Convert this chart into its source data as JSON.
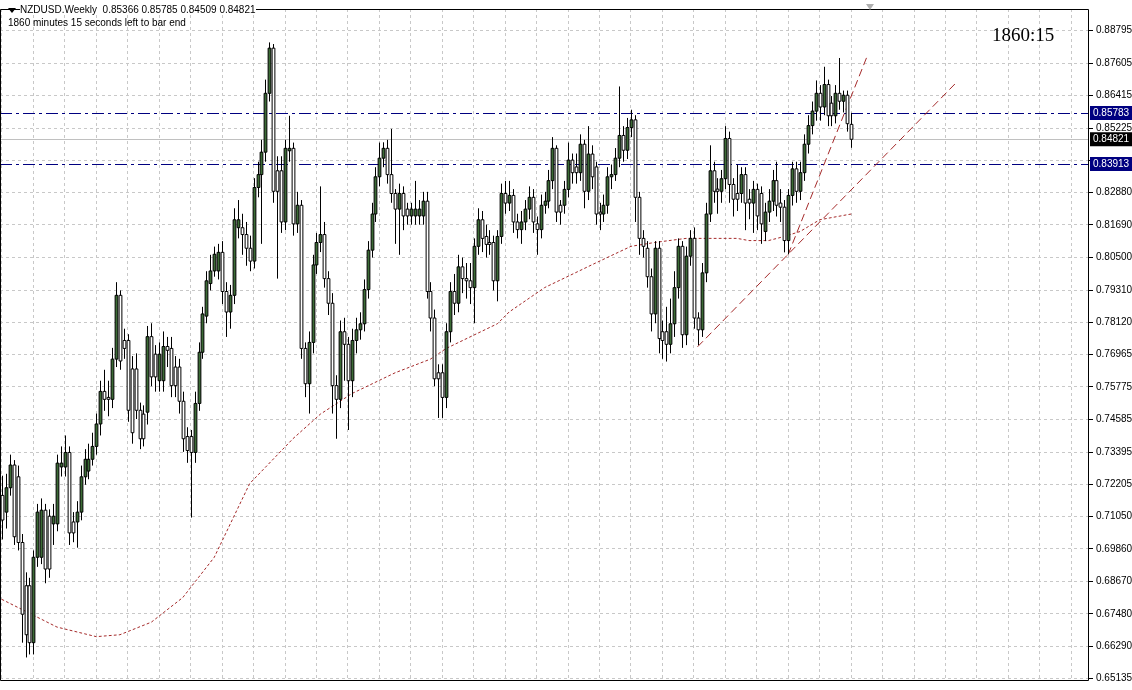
{
  "chart_data": {
    "type": "candlestick",
    "title": "NZDUSD.Weekly  0.85366 0.85785 0.84509 0.84821",
    "subtitle": "1860 minutes 15 seconds left to bar end",
    "annotations": [
      "1860:15"
    ],
    "categories": [
      null,
      null,
      null,
      null,
      null,
      null,
      null,
      null,
      null,
      null,
      null,
      null,
      null,
      null,
      null,
      null,
      null,
      null,
      null,
      null,
      null,
      null,
      null,
      null,
      null,
      null,
      null,
      null,
      null,
      null,
      null,
      null,
      null,
      null,
      null,
      null,
      null,
      null,
      null,
      null,
      null,
      null,
      null,
      null,
      null,
      null,
      null,
      null,
      null,
      null,
      null,
      null,
      null,
      null,
      null,
      null,
      null,
      null,
      null,
      null,
      null,
      null,
      null,
      null,
      null,
      null,
      null,
      null,
      null,
      null,
      null,
      null,
      null,
      null,
      null,
      null,
      null,
      null,
      null,
      null,
      null,
      null,
      null,
      null,
      null,
      null,
      null,
      null,
      null,
      null,
      null,
      null,
      null,
      null,
      null,
      null,
      null,
      null,
      null,
      null,
      null,
      null,
      null,
      null,
      null,
      null,
      null,
      null,
      null,
      null,
      null,
      null,
      null,
      null,
      null,
      null,
      null,
      null,
      null,
      null,
      null,
      null,
      null,
      null,
      null,
      null,
      null,
      null,
      null,
      null,
      null,
      null,
      null,
      null,
      null,
      null,
      null,
      null,
      null,
      null,
      null,
      null,
      null,
      null,
      null,
      null,
      null,
      null,
      null,
      null,
      null,
      null,
      null,
      null,
      null,
      null,
      null,
      null,
      null,
      null,
      null,
      null,
      null,
      null,
      null,
      null,
      null,
      null,
      null,
      null,
      null,
      null,
      null,
      null,
      null,
      null,
      null,
      null,
      null,
      null,
      null,
      null,
      null,
      null,
      null,
      null,
      null,
      null,
      null,
      null,
      null,
      null,
      null,
      null,
      null,
      null,
      null,
      null,
      null,
      null,
      null,
      null,
      null,
      null,
      null,
      null,
      null,
      null,
      null,
      null,
      null,
      null,
      null,
      null,
      null,
      null,
      null,
      null,
      null,
      null,
      null,
      null,
      null,
      null,
      null,
      null,
      null,
      null,
      null,
      null,
      null,
      null,
      null,
      null,
      null,
      null,
      null,
      null,
      null,
      null,
      null,
      null,
      null,
      null,
      null,
      null,
      null,
      null,
      null,
      null,
      null,
      null,
      null,
      null,
      null,
      null,
      null,
      null,
      null,
      null,
      null,
      null,
      null,
      null,
      null,
      null,
      null,
      null,
      null,
      null,
      null,
      null,
      null,
      null,
      null,
      null,
      null
    ],
    "ohlc": [
      [
        0.7181,
        0.7253,
        0.702,
        0.7091
      ],
      [
        0.712,
        0.726,
        0.706,
        0.7209
      ],
      [
        0.7209,
        0.733,
        0.718,
        0.7292
      ],
      [
        0.7292,
        0.731,
        0.7,
        0.703
      ],
      [
        0.7249,
        0.729,
        0.698,
        0.7009
      ],
      [
        0.7009,
        0.704,
        0.6643,
        0.6747
      ],
      [
        0.6851,
        0.69,
        0.6589,
        0.6672
      ],
      [
        0.6851,
        0.688,
        0.66,
        0.6643
      ],
      [
        0.6643,
        0.698,
        0.66,
        0.6955
      ],
      [
        0.6955,
        0.715,
        0.692,
        0.712
      ],
      [
        0.6955,
        0.717,
        0.693,
        0.7127
      ],
      [
        0.7127,
        0.715,
        0.686,
        0.6912
      ],
      [
        0.7105,
        0.713,
        0.688,
        0.6912
      ],
      [
        0.7077,
        0.715,
        0.7,
        0.7105
      ],
      [
        0.7077,
        0.733,
        0.705,
        0.7299
      ],
      [
        0.7285,
        0.736,
        0.725,
        0.7299
      ],
      [
        0.7285,
        0.74,
        0.725,
        0.7338
      ],
      [
        0.7338,
        0.736,
        0.7,
        0.7044
      ],
      [
        0.7084,
        0.712,
        0.701,
        0.7044
      ],
      [
        0.7084,
        0.716,
        0.699,
        0.712
      ],
      [
        0.712,
        0.729,
        0.709,
        0.7249
      ],
      [
        0.7249,
        0.735,
        0.722,
        0.7313
      ],
      [
        0.727,
        0.737,
        0.724,
        0.7313
      ],
      [
        0.7313,
        0.741,
        0.729,
        0.736
      ],
      [
        0.736,
        0.748,
        0.733,
        0.7442
      ],
      [
        0.7442,
        0.76,
        0.74,
        0.7561
      ],
      [
        0.7561,
        0.764,
        0.749,
        0.7532
      ],
      [
        0.7539,
        0.76,
        0.747,
        0.7532
      ],
      [
        0.7532,
        0.772,
        0.75,
        0.7679
      ],
      [
        0.7679,
        0.796,
        0.765,
        0.7912
      ],
      [
        0.7912,
        0.793,
        0.764,
        0.7672
      ],
      [
        0.7747,
        0.779,
        0.768,
        0.7718
      ],
      [
        0.7747,
        0.777,
        0.745,
        0.7492
      ],
      [
        0.7643,
        0.769,
        0.737,
        0.741
      ],
      [
        0.7643,
        0.77,
        0.746,
        0.7492
      ],
      [
        0.7492,
        0.752,
        0.735,
        0.7388
      ],
      [
        0.7478,
        0.751,
        0.736,
        0.7388
      ],
      [
        0.7485,
        0.78,
        0.744,
        0.7761
      ],
      [
        0.7761,
        0.781,
        0.758,
        0.7614
      ],
      [
        0.7697,
        0.773,
        0.756,
        0.7614
      ],
      [
        0.76,
        0.774,
        0.756,
        0.7697
      ],
      [
        0.76,
        0.778,
        0.756,
        0.7725
      ],
      [
        0.7725,
        0.776,
        0.765,
        0.7711
      ],
      [
        0.7718,
        0.776,
        0.754,
        0.7582
      ],
      [
        0.765,
        0.769,
        0.754,
        0.7582
      ],
      [
        0.765,
        0.768,
        0.748,
        0.7525
      ],
      [
        0.7525,
        0.756,
        0.734,
        0.7388
      ],
      [
        0.7396,
        0.743,
        0.73,
        0.7345
      ],
      [
        0.7396,
        0.742,
        0.71,
        0.7338
      ],
      [
        0.7338,
        0.756,
        0.73,
        0.7517
      ],
      [
        0.7517,
        0.774,
        0.749,
        0.7704
      ],
      [
        0.7704,
        0.787,
        0.768,
        0.7844
      ],
      [
        0.7836,
        0.8,
        0.781,
        0.7965
      ],
      [
        0.7955,
        0.806,
        0.793,
        0.8001
      ],
      [
        0.8001,
        0.809,
        0.798,
        0.8062
      ],
      [
        0.8001,
        0.81,
        0.797,
        0.8069
      ],
      [
        0.8069,
        0.811,
        0.788,
        0.7926
      ],
      [
        0.7926,
        0.796,
        0.776,
        0.7851
      ],
      [
        0.7851,
        0.795,
        0.779,
        0.7912
      ],
      [
        0.7912,
        0.823,
        0.788,
        0.8188
      ],
      [
        0.8159,
        0.826,
        0.812,
        0.8188
      ],
      [
        0.8159,
        0.821,
        0.806,
        0.8134
      ],
      [
        0.8134,
        0.818,
        0.802,
        0.8084
      ],
      [
        0.8084,
        0.813,
        0.8,
        0.8037
      ],
      [
        0.8037,
        0.834,
        0.801,
        0.8306
      ],
      [
        0.8306,
        0.84,
        0.827,
        0.8353
      ],
      [
        0.8353,
        0.848,
        0.81,
        0.8435
      ],
      [
        0.8435,
        0.87,
        0.84,
        0.865
      ],
      [
        0.865,
        0.8836,
        0.862,
        0.8815
      ],
      [
        0.8815,
        0.883,
        0.825,
        0.8292
      ],
      [
        0.8367,
        0.842,
        0.7973,
        0.8292
      ],
      [
        0.8367,
        0.842,
        0.814,
        0.818
      ],
      [
        0.818,
        0.848,
        0.815,
        0.8449
      ],
      [
        0.844,
        0.8568,
        0.84,
        0.8449
      ],
      [
        0.8449,
        0.847,
        0.813,
        0.8173
      ],
      [
        0.8173,
        0.829,
        0.814,
        0.8241
      ],
      [
        0.8241,
        0.826,
        0.768,
        0.7718
      ],
      [
        0.7718,
        0.774,
        0.754,
        0.7589
      ],
      [
        0.7589,
        0.778,
        0.748,
        0.774
      ],
      [
        0.774,
        0.806,
        0.77,
        0.8023
      ],
      [
        0.8023,
        0.814,
        0.799,
        0.8105
      ],
      [
        0.8105,
        0.831,
        0.807,
        0.8134
      ],
      [
        0.8134,
        0.818,
        0.794,
        0.7973
      ],
      [
        0.7973,
        0.8,
        0.784,
        0.7883
      ],
      [
        0.7883,
        0.792,
        0.748,
        0.7582
      ],
      [
        0.7582,
        0.762,
        0.7388,
        0.7532
      ],
      [
        0.7532,
        0.782,
        0.75,
        0.7779
      ],
      [
        0.7779,
        0.783,
        0.76,
        0.7733
      ],
      [
        0.7733,
        0.776,
        0.742,
        0.76
      ],
      [
        0.76,
        0.779,
        0.754,
        0.7747
      ],
      [
        0.7747,
        0.783,
        0.77,
        0.7786
      ],
      [
        0.7786,
        0.785,
        0.775,
        0.7808
      ],
      [
        0.7808,
        0.797,
        0.778,
        0.7933
      ],
      [
        0.7933,
        0.811,
        0.79,
        0.8077
      ],
      [
        0.8077,
        0.825,
        0.805,
        0.8209
      ],
      [
        0.8209,
        0.838,
        0.818,
        0.8345
      ],
      [
        0.8345,
        0.847,
        0.831,
        0.8413
      ],
      [
        0.8413,
        0.8471,
        0.838,
        0.8449
      ],
      [
        0.8449,
        0.848,
        0.832,
        0.8353
      ],
      [
        0.8353,
        0.852,
        0.825,
        0.8284
      ],
      [
        0.8284,
        0.83,
        0.81,
        0.8227
      ],
      [
        0.8227,
        0.832,
        0.806,
        0.8284
      ],
      [
        0.8284,
        0.831,
        0.815,
        0.8202
      ],
      [
        0.8227,
        0.825,
        0.817,
        0.8202
      ],
      [
        0.8202,
        0.825,
        0.817,
        0.8227
      ],
      [
        0.8202,
        0.833,
        0.817,
        0.8227
      ],
      [
        0.8202,
        0.826,
        0.817,
        0.8227
      ],
      [
        0.8202,
        0.829,
        0.817,
        0.8256
      ],
      [
        0.8256,
        0.829,
        0.79,
        0.7926
      ],
      [
        0.7926,
        0.796,
        0.778,
        0.7829
      ],
      [
        0.7829,
        0.786,
        0.758,
        0.7607
      ],
      [
        0.7629,
        0.766,
        0.7464,
        0.7607
      ],
      [
        0.7629,
        0.766,
        0.7464,
        0.7539
      ],
      [
        0.7539,
        0.781,
        0.75,
        0.7779
      ],
      [
        0.7779,
        0.796,
        0.774,
        0.7926
      ],
      [
        0.7926,
        0.799,
        0.784,
        0.7883
      ],
      [
        0.7883,
        0.806,
        0.785,
        0.8016
      ],
      [
        0.8016,
        0.805,
        0.792,
        0.7973
      ],
      [
        0.7973,
        0.803,
        0.79,
        0.7965
      ],
      [
        0.7965,
        0.803,
        0.788,
        0.794
      ],
      [
        0.794,
        0.812,
        0.781,
        0.8091
      ],
      [
        0.8091,
        0.823,
        0.806,
        0.8188
      ],
      [
        0.8188,
        0.822,
        0.807,
        0.812
      ],
      [
        0.8127,
        0.817,
        0.805,
        0.8098
      ],
      [
        0.8105,
        0.815,
        0.806,
        0.8098
      ],
      [
        0.8105,
        0.813,
        0.793,
        0.7965
      ],
      [
        0.7965,
        0.815,
        0.789,
        0.8127
      ],
      [
        0.8127,
        0.832,
        0.81,
        0.8284
      ],
      [
        0.8284,
        0.833,
        0.821,
        0.8249
      ],
      [
        0.8249,
        0.833,
        0.822,
        0.8277
      ],
      [
        0.8277,
        0.83,
        0.814,
        0.818
      ],
      [
        0.818,
        0.821,
        0.812,
        0.8152
      ],
      [
        0.8152,
        0.822,
        0.81,
        0.818
      ],
      [
        0.818,
        0.826,
        0.815,
        0.8227
      ],
      [
        0.8227,
        0.831,
        0.819,
        0.827
      ],
      [
        0.827,
        0.83,
        0.814,
        0.818
      ],
      [
        0.8173,
        0.82,
        0.806,
        0.8152
      ],
      [
        0.8152,
        0.828,
        0.812,
        0.8241
      ],
      [
        0.8241,
        0.829,
        0.821,
        0.8256
      ],
      [
        0.8256,
        0.837,
        0.823,
        0.8331
      ],
      [
        0.8331,
        0.849,
        0.83,
        0.8449
      ],
      [
        0.8449,
        0.846,
        0.818,
        0.8216
      ],
      [
        0.8241,
        0.826,
        0.817,
        0.8216
      ],
      [
        0.8241,
        0.833,
        0.821,
        0.8299
      ],
      [
        0.8299,
        0.847,
        0.827,
        0.8406
      ],
      [
        0.8406,
        0.843,
        0.832,
        0.836
      ],
      [
        0.8381,
        0.843,
        0.832,
        0.836
      ],
      [
        0.836,
        0.85,
        0.833,
        0.8464
      ],
      [
        0.8464,
        0.848,
        0.823,
        0.8292
      ],
      [
        0.8292,
        0.853,
        0.826,
        0.8428
      ],
      [
        0.8428,
        0.846,
        0.83,
        0.8345
      ],
      [
        0.8381,
        0.84,
        0.817,
        0.8209
      ],
      [
        0.8216,
        0.825,
        0.815,
        0.8209
      ],
      [
        0.8209,
        0.828,
        0.818,
        0.8241
      ],
      [
        0.8241,
        0.838,
        0.821,
        0.8345
      ],
      [
        0.8345,
        0.839,
        0.83,
        0.8353
      ],
      [
        0.8353,
        0.845,
        0.833,
        0.8413
      ],
      [
        0.8413,
        0.8675,
        0.838,
        0.8496
      ],
      [
        0.8496,
        0.853,
        0.84,
        0.8442
      ],
      [
        0.8442,
        0.856,
        0.841,
        0.8525
      ],
      [
        0.8525,
        0.859,
        0.849,
        0.8553
      ],
      [
        0.8553,
        0.857,
        0.818,
        0.827
      ],
      [
        0.827,
        0.829,
        0.806,
        0.812
      ],
      [
        0.812,
        0.815,
        0.805,
        0.8091
      ],
      [
        0.8084,
        0.811,
        0.794,
        0.798
      ],
      [
        0.798,
        0.801,
        0.778,
        0.7844
      ],
      [
        0.7844,
        0.811,
        0.781,
        0.8084
      ],
      [
        0.8084,
        0.811,
        0.77,
        0.7754
      ],
      [
        0.7779,
        0.782,
        0.768,
        0.7747
      ],
      [
        0.7779,
        0.787,
        0.767,
        0.7733
      ],
      [
        0.7733,
        0.79,
        0.77,
        0.7808
      ],
      [
        0.7808,
        0.8,
        0.776,
        0.794
      ],
      [
        0.794,
        0.812,
        0.79,
        0.8091
      ],
      [
        0.8091,
        0.811,
        0.772,
        0.7768
      ],
      [
        0.7768,
        0.809,
        0.773,
        0.8055
      ],
      [
        0.8055,
        0.815,
        0.802,
        0.812
      ],
      [
        0.812,
        0.816,
        0.779,
        0.7829
      ],
      [
        0.7829,
        0.785,
        0.773,
        0.7786
      ],
      [
        0.7786,
        0.803,
        0.776,
        0.7994
      ],
      [
        0.7994,
        0.825,
        0.796,
        0.8209
      ],
      [
        0.8209,
        0.846,
        0.818,
        0.8367
      ],
      [
        0.8367,
        0.84,
        0.825,
        0.8292
      ],
      [
        0.83,
        0.834,
        0.821,
        0.8292
      ],
      [
        0.8292,
        0.837,
        0.825,
        0.8338
      ],
      [
        0.8338,
        0.853,
        0.83,
        0.8485
      ],
      [
        0.8485,
        0.851,
        0.825,
        0.8317
      ],
      [
        0.8317,
        0.834,
        0.82,
        0.8263
      ],
      [
        0.8284,
        0.839,
        0.822,
        0.8263
      ],
      [
        0.8284,
        0.838,
        0.825,
        0.8353
      ],
      [
        0.8353,
        0.838,
        0.815,
        0.8249
      ],
      [
        0.8263,
        0.83,
        0.819,
        0.8249
      ],
      [
        0.8249,
        0.833,
        0.814,
        0.8299
      ],
      [
        0.8299,
        0.832,
        0.815,
        0.8202
      ],
      [
        0.8284,
        0.831,
        0.81,
        0.8173
      ],
      [
        0.8145,
        0.825,
        0.811,
        0.8216
      ],
      [
        0.8216,
        0.83,
        0.818,
        0.8256
      ],
      [
        0.8256,
        0.837,
        0.822,
        0.8331
      ],
      [
        0.8331,
        0.84,
        0.82,
        0.8241
      ],
      [
        0.8249,
        0.83,
        0.818,
        0.8234
      ],
      [
        0.8234,
        0.826,
        0.8069,
        0.8112
      ],
      [
        0.8112,
        0.83,
        0.8062,
        0.8277
      ],
      [
        0.8277,
        0.84,
        0.824,
        0.8374
      ],
      [
        0.8374,
        0.84,
        0.825,
        0.8292
      ],
      [
        0.8292,
        0.84,
        0.826,
        0.836
      ],
      [
        0.836,
        0.85,
        0.833,
        0.8464
      ],
      [
        0.8464,
        0.857,
        0.843,
        0.8532
      ],
      [
        0.8532,
        0.862,
        0.85,
        0.8585
      ],
      [
        0.8585,
        0.8697,
        0.855,
        0.865
      ],
      [
        0.865,
        0.868,
        0.855,
        0.86
      ],
      [
        0.86,
        0.8747,
        0.857,
        0.8682
      ],
      [
        0.8682,
        0.87,
        0.853,
        0.8568
      ],
      [
        0.8614,
        0.864,
        0.853,
        0.8568
      ],
      [
        0.8568,
        0.868,
        0.854,
        0.865
      ],
      [
        0.865,
        0.8779,
        0.859,
        0.8621
      ],
      [
        0.8621,
        0.866,
        0.858,
        0.8643
      ],
      [
        0.8643,
        0.866,
        0.851,
        0.8539
      ],
      [
        0.85366,
        0.85785,
        0.84509,
        0.84821
      ],
      null,
      null,
      null,
      null,
      null,
      null,
      null,
      null,
      null,
      null,
      null,
      null,
      null,
      null,
      null,
      null,
      null,
      null,
      null,
      null,
      null,
      null,
      null,
      null,
      null,
      null,
      null,
      null,
      null,
      null,
      null,
      null,
      null,
      null,
      null,
      null,
      null,
      null,
      null,
      null,
      null,
      null,
      null,
      null,
      null,
      null,
      null,
      null,
      null,
      null,
      null,
      null,
      null,
      null,
      null,
      null,
      null,
      null,
      null,
      null
    ],
    "series": [
      {
        "type": "line",
        "color": "#a52a2a",
        "line_style": "dotted",
        "values": [
          0.6801,
          null,
          null,
          null,
          null,
          null,
          null,
          null,
          null,
          null,
          null,
          null,
          null,
          null,
          0.67,
          null,
          null,
          null,
          null,
          null,
          null,
          null,
          null,
          null,
          0.6665,
          null,
          null,
          null,
          null,
          null,
          0.6672,
          null,
          null,
          null,
          null,
          null,
          null,
          null,
          0.6718,
          null,
          null,
          null,
          null,
          null,
          null,
          null,
          0.6808,
          null,
          null,
          null,
          null,
          null,
          null,
          null,
          0.6955,
          null,
          null,
          null,
          null,
          null,
          null,
          null,
          null,
          0.7224,
          null,
          null,
          null,
          null,
          null,
          null,
          null,
          null,
          null,
          null,
          0.7388,
          null,
          null,
          null,
          null,
          null,
          null,
          0.7478,
          null,
          null,
          null,
          null,
          null,
          null,
          null,
          0.7553,
          null,
          null,
          null,
          null,
          null,
          null,
          null,
          null,
          null,
          null,
          0.7629,
          null,
          null,
          null,
          null,
          null,
          null,
          null,
          null,
          0.7679,
          null,
          null,
          null,
          0.7718,
          null,
          null,
          null,
          null,
          null,
          null,
          null,
          null,
          null,
          null,
          null,
          null,
          0.7808,
          null,
          null,
          0.7851,
          null,
          null,
          null,
          null,
          null,
          null,
          null,
          null,
          0.794,
          null,
          null,
          null,
          null,
          null,
          null,
          null,
          null,
          null,
          null,
          null,
          null,
          0.803,
          null,
          null,
          null,
          null,
          null,
          null,
          null,
          null,
          0.8091,
          null,
          null,
          null,
          null,
          null,
          0.8105,
          null,
          null,
          null,
          null,
          null,
          null,
          null,
          0.812,
          null,
          null,
          null,
          null,
          null,
          null,
          null,
          null,
          null,
          null,
          null,
          null,
          0.812,
          null,
          null,
          0.8112,
          null,
          null,
          null,
          null,
          0.8112,
          null,
          null,
          null,
          0.8127,
          null,
          null,
          null,
          0.8145,
          null,
          null,
          null,
          null,
          0.8188,
          null,
          null,
          null,
          null,
          null,
          null,
          null,
          0.8209,
          null,
          null,
          null,
          null,
          null,
          null,
          null,
          null,
          null,
          null,
          null,
          null,
          null,
          null,
          null,
          null,
          null,
          null,
          null,
          null,
          null,
          null,
          null,
          null,
          null,
          null,
          null,
          null,
          null,
          null,
          null,
          null,
          null,
          null,
          null,
          null,
          null,
          null,
          null,
          null,
          null,
          null,
          null,
          null,
          null,
          null,
          null,
          null,
          null,
          null,
          null,
          null,
          null,
          null,
          null,
          null,
          null,
          null,
          null,
          null
        ]
      },
      {
        "type": "line",
        "color": "#a52a2a",
        "line_style": "dashed",
        "values": [
          null,
          null,
          null,
          null,
          null,
          null,
          null,
          null,
          null,
          null,
          null,
          null,
          null,
          null,
          null,
          null,
          null,
          null,
          null,
          null,
          null,
          null,
          null,
          null,
          null,
          null,
          null,
          null,
          null,
          null,
          null,
          null,
          null,
          null,
          null,
          null,
          null,
          null,
          null,
          null,
          null,
          null,
          null,
          null,
          null,
          null,
          null,
          null,
          null,
          null,
          null,
          null,
          null,
          null,
          null,
          null,
          null,
          null,
          null,
          null,
          null,
          null,
          null,
          null,
          null,
          null,
          null,
          null,
          null,
          null,
          null,
          null,
          null,
          null,
          null,
          null,
          null,
          null,
          null,
          null,
          null,
          null,
          null,
          null,
          null,
          null,
          null,
          null,
          null,
          null,
          null,
          null,
          null,
          null,
          null,
          null,
          null,
          null,
          null,
          null,
          null,
          null,
          null,
          null,
          null,
          null,
          null,
          null,
          null,
          null,
          null,
          null,
          null,
          null,
          null,
          null,
          null,
          null,
          null,
          null,
          null,
          null,
          null,
          null,
          null,
          null,
          null,
          null,
          null,
          null,
          null,
          null,
          null,
          null,
          null,
          null,
          null,
          null,
          null,
          null,
          null,
          null,
          null,
          null,
          null,
          null,
          null,
          null,
          null,
          null,
          null,
          null,
          null,
          null,
          null,
          null,
          null,
          null,
          null,
          null,
          null,
          null,
          null,
          null,
          null,
          null,
          null,
          null,
          null,
          null,
          null,
          null,
          null,
          null,
          null,
          null,
          null,
          0.7725,
          null,
          null,
          null,
          null,
          null,
          null,
          null,
          null,
          null,
          null,
          null,
          null,
          null,
          null,
          null,
          null,
          null,
          null,
          null,
          null,
          null,
          null,
          null,
          null,
          null,
          null,
          null,
          null,
          null,
          null,
          null,
          null,
          null,
          null,
          null,
          null,
          null,
          null,
          null,
          null,
          null,
          null,
          null,
          null,
          null,
          null,
          null,
          null,
          null,
          null,
          null,
          null,
          null,
          null,
          null,
          null,
          null,
          null,
          null,
          null,
          null,
          null,
          null,
          null,
          null,
          0.8693,
          null,
          null,
          null,
          null,
          null,
          null,
          null,
          null,
          null,
          null,
          null,
          null,
          null,
          null,
          null,
          null,
          null,
          null,
          null,
          null,
          null,
          null,
          null,
          null,
          null,
          null,
          null,
          null,
          null,
          null,
          null,
          null,
          null
        ]
      },
      {
        "type": "line",
        "color": "#a52a2a",
        "line_style": "dashed",
        "values": [
          null,
          null,
          null,
          null,
          null,
          null,
          null,
          null,
          null,
          null,
          null,
          null,
          null,
          null,
          null,
          null,
          null,
          null,
          null,
          null,
          null,
          null,
          null,
          null,
          null,
          null,
          null,
          null,
          null,
          null,
          null,
          null,
          null,
          null,
          null,
          null,
          null,
          null,
          null,
          null,
          null,
          null,
          null,
          null,
          null,
          null,
          null,
          null,
          null,
          null,
          null,
          null,
          null,
          null,
          null,
          null,
          null,
          null,
          null,
          null,
          null,
          null,
          null,
          null,
          null,
          null,
          null,
          null,
          null,
          null,
          null,
          null,
          null,
          null,
          null,
          null,
          null,
          null,
          null,
          null,
          null,
          null,
          null,
          null,
          null,
          null,
          null,
          null,
          null,
          null,
          null,
          null,
          null,
          null,
          null,
          null,
          null,
          null,
          null,
          null,
          null,
          null,
          null,
          null,
          null,
          null,
          null,
          null,
          null,
          null,
          null,
          null,
          null,
          null,
          null,
          null,
          null,
          null,
          null,
          null,
          null,
          null,
          null,
          null,
          null,
          null,
          null,
          null,
          null,
          null,
          null,
          null,
          null,
          null,
          null,
          null,
          null,
          null,
          null,
          null,
          null,
          null,
          null,
          null,
          null,
          null,
          null,
          null,
          null,
          null,
          null,
          null,
          null,
          null,
          null,
          null,
          null,
          null,
          null,
          null,
          null,
          null,
          null,
          null,
          null,
          null,
          null,
          null,
          null,
          null,
          null,
          null,
          null,
          null,
          null,
          null,
          null,
          null,
          null,
          null,
          null,
          null,
          null,
          null,
          null,
          null,
          null,
          null,
          null,
          null,
          null,
          null,
          null,
          null,
          null,
          null,
          null,
          null,
          null,
          null,
          0.8062,
          null,
          null,
          null,
          null,
          null,
          null,
          null,
          null,
          null,
          null,
          null,
          null,
          null,
          null,
          null,
          null,
          null,
          null,
          null,
          0.8783,
          null,
          null,
          null,
          null,
          null,
          null,
          null,
          null,
          null,
          null,
          null,
          null,
          null,
          null,
          null,
          null,
          null,
          null,
          null,
          null,
          null,
          null,
          null,
          null,
          null,
          null,
          null,
          null,
          null,
          null,
          null,
          null,
          null,
          null,
          null,
          null,
          null,
          null,
          null,
          null,
          null,
          null,
          null,
          null,
          null,
          null,
          null,
          null,
          null,
          null,
          null,
          null,
          null,
          null,
          null,
          null
        ]
      }
    ],
    "ylim": [
      0.6503,
      0.8958
    ],
    "yticks": [
      0.65135,
      {
        "value": 0.6629,
        "label": "0.66290"
      },
      {
        "value": 0.6748,
        "label": "0.67480"
      },
      {
        "value": 0.6867,
        "label": "0.68670"
      },
      {
        "value": 0.6986,
        "label": "0.69860"
      },
      {
        "value": 0.7105,
        "label": "0.71050"
      },
      0.72205,
      0.73395,
      0.74585,
      0.75775,
      0.76965,
      {
        "value": 0.7812,
        "label": "0.78120"
      },
      {
        "value": 0.7931,
        "label": "0.79310"
      },
      {
        "value": 0.805,
        "label": "0.80500"
      },
      {
        "value": 0.8169,
        "label": "0.81690"
      },
      {
        "value": 0.8288,
        "label": "0.82880"
      },
      {
        "value": 0.84035,
        "label": null
      },
      0.85225,
      0.86415,
      0.87605,
      0.88795
    ],
    "ref_lines": [
      {
        "axis": "y",
        "value": 0.85783,
        "label": "0.85783",
        "color": "#000080",
        "line_style": "dashed"
      },
      {
        "axis": "y",
        "value": 0.83913,
        "label": "0.83913",
        "color": "#000080",
        "line_style": "dashed"
      },
      {
        "axis": "y",
        "value": 0.84821,
        "label": "0.84821",
        "color": "#c0c0c0",
        "line_style": "solid"
      }
    ],
    "grid": true,
    "tick_labels": "y"
  }
}
